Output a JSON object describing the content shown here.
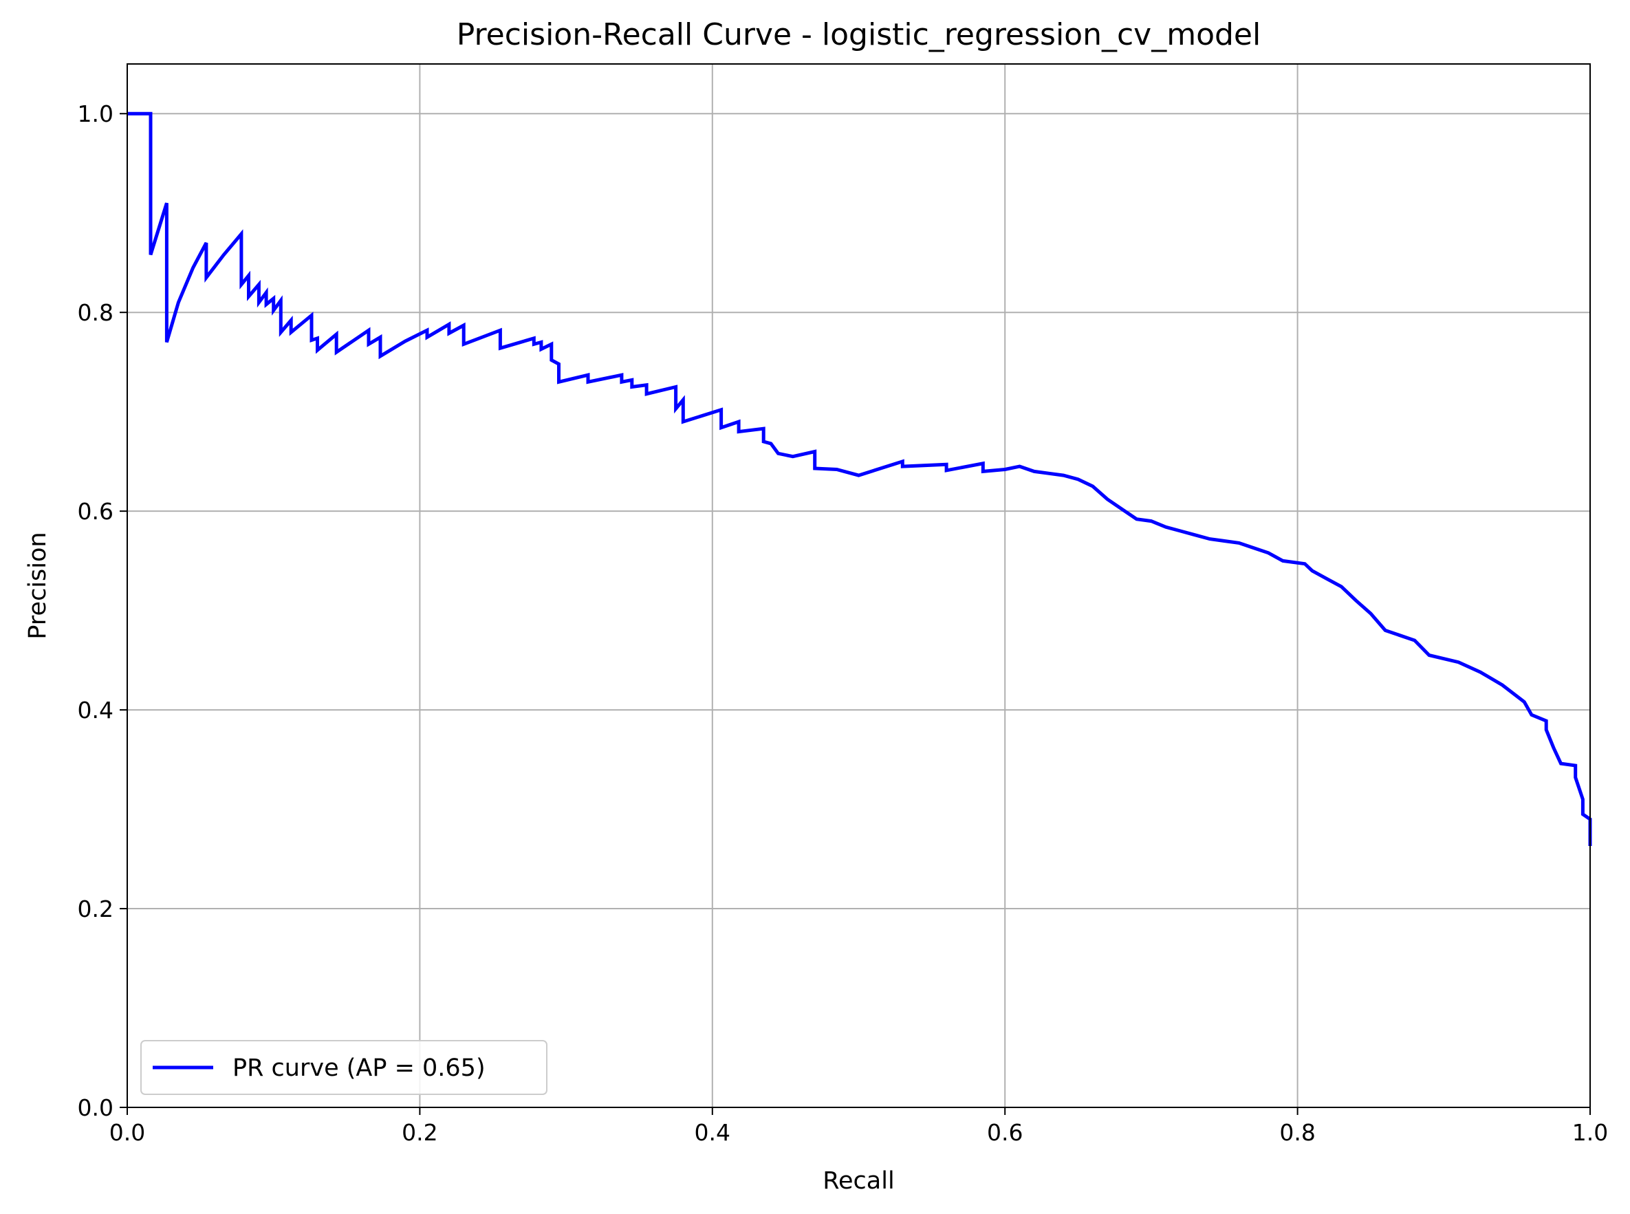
{
  "chart_data": {
    "type": "line",
    "title": "Precision-Recall Curve - logistic_regression_cv_model",
    "xlabel": "Recall",
    "ylabel": "Precision",
    "xlim": [
      0.0,
      1.0
    ],
    "ylim": [
      0.0,
      1.05
    ],
    "grid": true,
    "legend_position": "lower-left",
    "x_ticks": [
      "0.0",
      "0.2",
      "0.4",
      "0.6",
      "0.8",
      "1.0"
    ],
    "y_ticks": [
      "0.0",
      "0.2",
      "0.4",
      "0.6",
      "0.8",
      "1.0"
    ],
    "series": [
      {
        "name": "PR curve (AP = 0.65)",
        "color": "#0000ff",
        "points": [
          [
            0.0,
            1.0
          ],
          [
            0.016,
            1.0
          ],
          [
            0.016,
            0.858
          ],
          [
            0.027,
            0.91
          ],
          [
            0.027,
            0.77
          ],
          [
            0.035,
            0.81
          ],
          [
            0.045,
            0.845
          ],
          [
            0.054,
            0.87
          ],
          [
            0.054,
            0.835
          ],
          [
            0.066,
            0.858
          ],
          [
            0.078,
            0.879
          ],
          [
            0.078,
            0.828
          ],
          [
            0.083,
            0.837
          ],
          [
            0.083,
            0.816
          ],
          [
            0.09,
            0.828
          ],
          [
            0.09,
            0.81
          ],
          [
            0.095,
            0.82
          ],
          [
            0.095,
            0.808
          ],
          [
            0.1,
            0.814
          ],
          [
            0.1,
            0.802
          ],
          [
            0.105,
            0.812
          ],
          [
            0.105,
            0.78
          ],
          [
            0.112,
            0.792
          ],
          [
            0.112,
            0.78
          ],
          [
            0.126,
            0.797
          ],
          [
            0.126,
            0.772
          ],
          [
            0.13,
            0.774
          ],
          [
            0.13,
            0.762
          ],
          [
            0.143,
            0.778
          ],
          [
            0.143,
            0.76
          ],
          [
            0.165,
            0.782
          ],
          [
            0.165,
            0.768
          ],
          [
            0.173,
            0.775
          ],
          [
            0.173,
            0.756
          ],
          [
            0.19,
            0.771
          ],
          [
            0.205,
            0.782
          ],
          [
            0.205,
            0.775
          ],
          [
            0.22,
            0.788
          ],
          [
            0.22,
            0.779
          ],
          [
            0.23,
            0.787
          ],
          [
            0.23,
            0.768
          ],
          [
            0.255,
            0.782
          ],
          [
            0.255,
            0.764
          ],
          [
            0.278,
            0.774
          ],
          [
            0.278,
            0.768
          ],
          [
            0.283,
            0.77
          ],
          [
            0.283,
            0.763
          ],
          [
            0.29,
            0.768
          ],
          [
            0.29,
            0.752
          ],
          [
            0.295,
            0.748
          ],
          [
            0.295,
            0.73
          ],
          [
            0.315,
            0.737
          ],
          [
            0.315,
            0.73
          ],
          [
            0.338,
            0.737
          ],
          [
            0.338,
            0.73
          ],
          [
            0.345,
            0.732
          ],
          [
            0.345,
            0.725
          ],
          [
            0.355,
            0.727
          ],
          [
            0.355,
            0.718
          ],
          [
            0.375,
            0.725
          ],
          [
            0.375,
            0.703
          ],
          [
            0.38,
            0.712
          ],
          [
            0.38,
            0.69
          ],
          [
            0.406,
            0.702
          ],
          [
            0.406,
            0.684
          ],
          [
            0.418,
            0.69
          ],
          [
            0.418,
            0.68
          ],
          [
            0.435,
            0.683
          ],
          [
            0.435,
            0.67
          ],
          [
            0.44,
            0.668
          ],
          [
            0.445,
            0.658
          ],
          [
            0.455,
            0.655
          ],
          [
            0.47,
            0.66
          ],
          [
            0.47,
            0.643
          ],
          [
            0.485,
            0.642
          ],
          [
            0.5,
            0.636
          ],
          [
            0.53,
            0.65
          ],
          [
            0.53,
            0.645
          ],
          [
            0.56,
            0.647
          ],
          [
            0.56,
            0.641
          ],
          [
            0.585,
            0.648
          ],
          [
            0.585,
            0.64
          ],
          [
            0.6,
            0.642
          ],
          [
            0.61,
            0.645
          ],
          [
            0.62,
            0.64
          ],
          [
            0.64,
            0.636
          ],
          [
            0.65,
            0.632
          ],
          [
            0.66,
            0.625
          ],
          [
            0.67,
            0.612
          ],
          [
            0.68,
            0.602
          ],
          [
            0.69,
            0.592
          ],
          [
            0.7,
            0.59
          ],
          [
            0.71,
            0.584
          ],
          [
            0.72,
            0.58
          ],
          [
            0.73,
            0.576
          ],
          [
            0.74,
            0.572
          ],
          [
            0.76,
            0.568
          ],
          [
            0.77,
            0.563
          ],
          [
            0.78,
            0.558
          ],
          [
            0.79,
            0.55
          ],
          [
            0.805,
            0.547
          ],
          [
            0.81,
            0.54
          ],
          [
            0.82,
            0.532
          ],
          [
            0.83,
            0.524
          ],
          [
            0.84,
            0.51
          ],
          [
            0.85,
            0.497
          ],
          [
            0.86,
            0.48
          ],
          [
            0.88,
            0.47
          ],
          [
            0.89,
            0.455
          ],
          [
            0.91,
            0.448
          ],
          [
            0.925,
            0.438
          ],
          [
            0.94,
            0.425
          ],
          [
            0.955,
            0.408
          ],
          [
            0.96,
            0.395
          ],
          [
            0.97,
            0.389
          ],
          [
            0.97,
            0.38
          ],
          [
            0.975,
            0.362
          ],
          [
            0.98,
            0.346
          ],
          [
            0.99,
            0.344
          ],
          [
            0.99,
            0.332
          ],
          [
            0.995,
            0.31
          ],
          [
            0.995,
            0.295
          ],
          [
            1.0,
            0.29
          ],
          [
            1.0,
            0.263
          ]
        ]
      }
    ]
  }
}
